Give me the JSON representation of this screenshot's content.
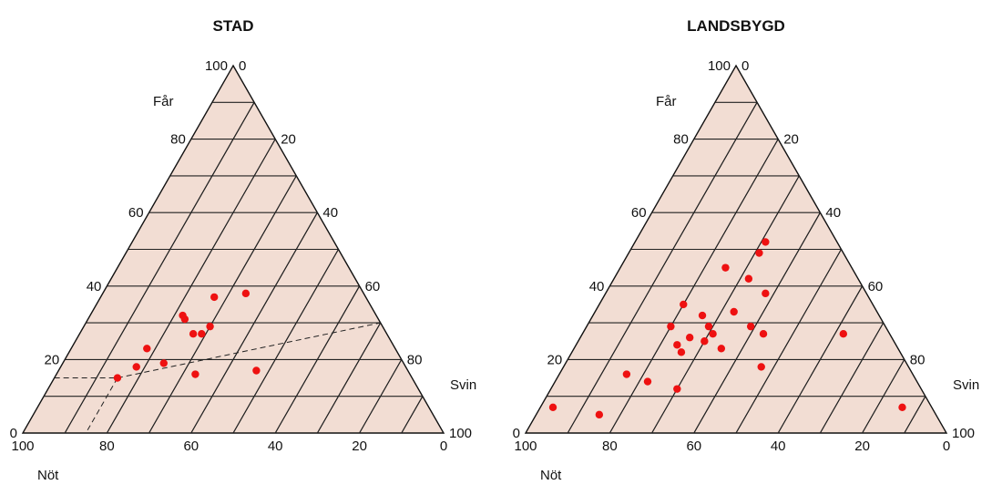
{
  "chart_data": [
    {
      "type": "scatter",
      "subtype": "ternary",
      "title": "STAD",
      "axes": {
        "top": {
          "label": "Får",
          "ticks": [
            "100",
            "80",
            "60",
            "40",
            "20",
            "0"
          ]
        },
        "right": {
          "label": "Svin",
          "ticks": [
            "0",
            "20",
            "40",
            "60",
            "80",
            "100"
          ]
        },
        "bottom": {
          "label": "Nöt",
          "ticks": [
            "100",
            "80",
            "60",
            "40",
            "20",
            "0"
          ]
        }
      },
      "grid_step": 10,
      "points": [
        {
          "far": 37,
          "svin": 27,
          "not": 36
        },
        {
          "far": 38,
          "svin": 34,
          "not": 28
        },
        {
          "far": 32,
          "svin": 22,
          "not": 46
        },
        {
          "far": 31,
          "svin": 23,
          "not": 46
        },
        {
          "far": 29,
          "svin": 30,
          "not": 41
        },
        {
          "far": 27,
          "svin": 27,
          "not": 46
        },
        {
          "far": 27,
          "svin": 29,
          "not": 44
        },
        {
          "far": 23,
          "svin": 18,
          "not": 59
        },
        {
          "far": 18,
          "svin": 18,
          "not": 64
        },
        {
          "far": 19,
          "svin": 24,
          "not": 57
        },
        {
          "far": 16,
          "svin": 33,
          "not": 51
        },
        {
          "far": 17,
          "svin": 47,
          "not": 36
        },
        {
          "far": 15,
          "svin": 15,
          "not": 70
        }
      ],
      "highlight_point": {
        "far": 15,
        "svin": 15,
        "not": 70
      }
    },
    {
      "type": "scatter",
      "subtype": "ternary",
      "title": "LANDSBYGD",
      "axes": {
        "top": {
          "label": "Får",
          "ticks": [
            "100",
            "80",
            "60",
            "40",
            "20",
            "0"
          ]
        },
        "right": {
          "label": "Svin",
          "ticks": [
            "0",
            "20",
            "40",
            "60",
            "80",
            "100"
          ]
        },
        "bottom": {
          "label": "Nöt",
          "ticks": [
            "100",
            "80",
            "60",
            "40",
            "20",
            "0"
          ]
        }
      },
      "grid_step": 10,
      "points": [
        {
          "far": 52,
          "svin": 31,
          "not": 17
        },
        {
          "far": 49,
          "svin": 31,
          "not": 20
        },
        {
          "far": 45,
          "svin": 25,
          "not": 30
        },
        {
          "far": 42,
          "svin": 32,
          "not": 26
        },
        {
          "far": 38,
          "svin": 38,
          "not": 24
        },
        {
          "far": 35,
          "svin": 20,
          "not": 45
        },
        {
          "far": 33,
          "svin": 33,
          "not": 34
        },
        {
          "far": 32,
          "svin": 26,
          "not": 42
        },
        {
          "far": 29,
          "svin": 20,
          "not": 51
        },
        {
          "far": 29,
          "svin": 29,
          "not": 42
        },
        {
          "far": 29,
          "svin": 39,
          "not": 32
        },
        {
          "far": 27,
          "svin": 31,
          "not": 42
        },
        {
          "far": 27,
          "svin": 43,
          "not": 30
        },
        {
          "far": 26,
          "svin": 26,
          "not": 48
        },
        {
          "far": 25,
          "svin": 30,
          "not": 45
        },
        {
          "far": 24,
          "svin": 24,
          "not": 52
        },
        {
          "far": 23,
          "svin": 35,
          "not": 42
        },
        {
          "far": 22,
          "svin": 26,
          "not": 52
        },
        {
          "far": 18,
          "svin": 47,
          "not": 35
        },
        {
          "far": 16,
          "svin": 16,
          "not": 68
        },
        {
          "far": 14,
          "svin": 22,
          "not": 64
        },
        {
          "far": 12,
          "svin": 30,
          "not": 58
        },
        {
          "far": 27,
          "svin": 62,
          "not": 11
        },
        {
          "far": 7,
          "svin": 3,
          "not": 90
        },
        {
          "far": 5,
          "svin": 15,
          "not": 80
        },
        {
          "far": 7,
          "svin": 86,
          "not": 7
        }
      ]
    }
  ]
}
